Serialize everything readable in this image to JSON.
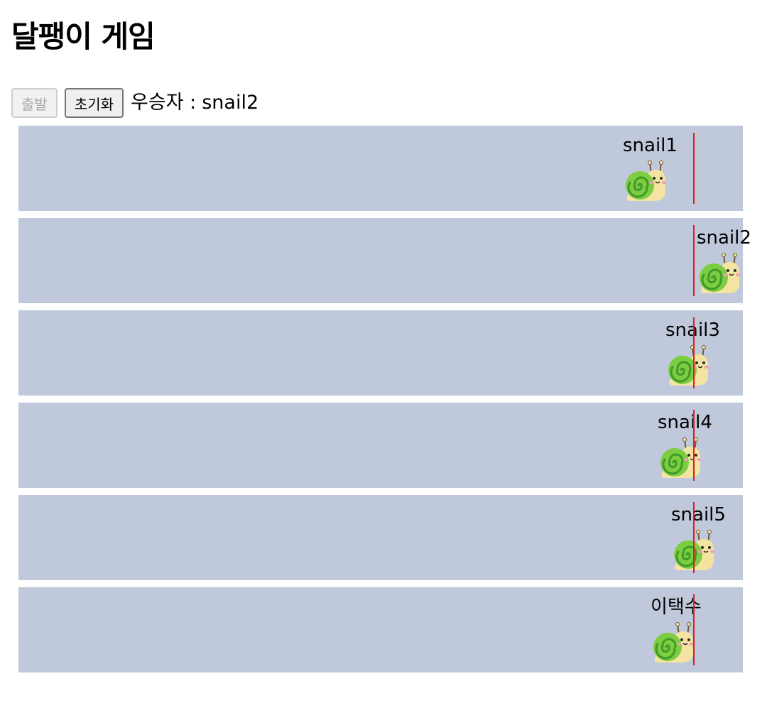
{
  "title": "달팽이 게임",
  "controls": {
    "start_label": "출발",
    "reset_label": "초기화",
    "winner_label": "우승자 :",
    "winner_value": "snail2"
  },
  "lanes": [
    {
      "name": "snail1",
      "progress": 0.834
    },
    {
      "name": "snail2",
      "progress": 0.936
    },
    {
      "name": "snail3",
      "progress": 0.893
    },
    {
      "name": "snail4",
      "progress": 0.882
    },
    {
      "name": "snail5",
      "progress": 0.901
    },
    {
      "name": "이택수",
      "progress": 0.873
    }
  ],
  "icons": {
    "snail": "snail-icon"
  },
  "colors": {
    "lane_bg": "#bfc9db",
    "finish_line": "#e11d1d",
    "shell": "#7ccd3f",
    "body": "#f4e3a1"
  }
}
